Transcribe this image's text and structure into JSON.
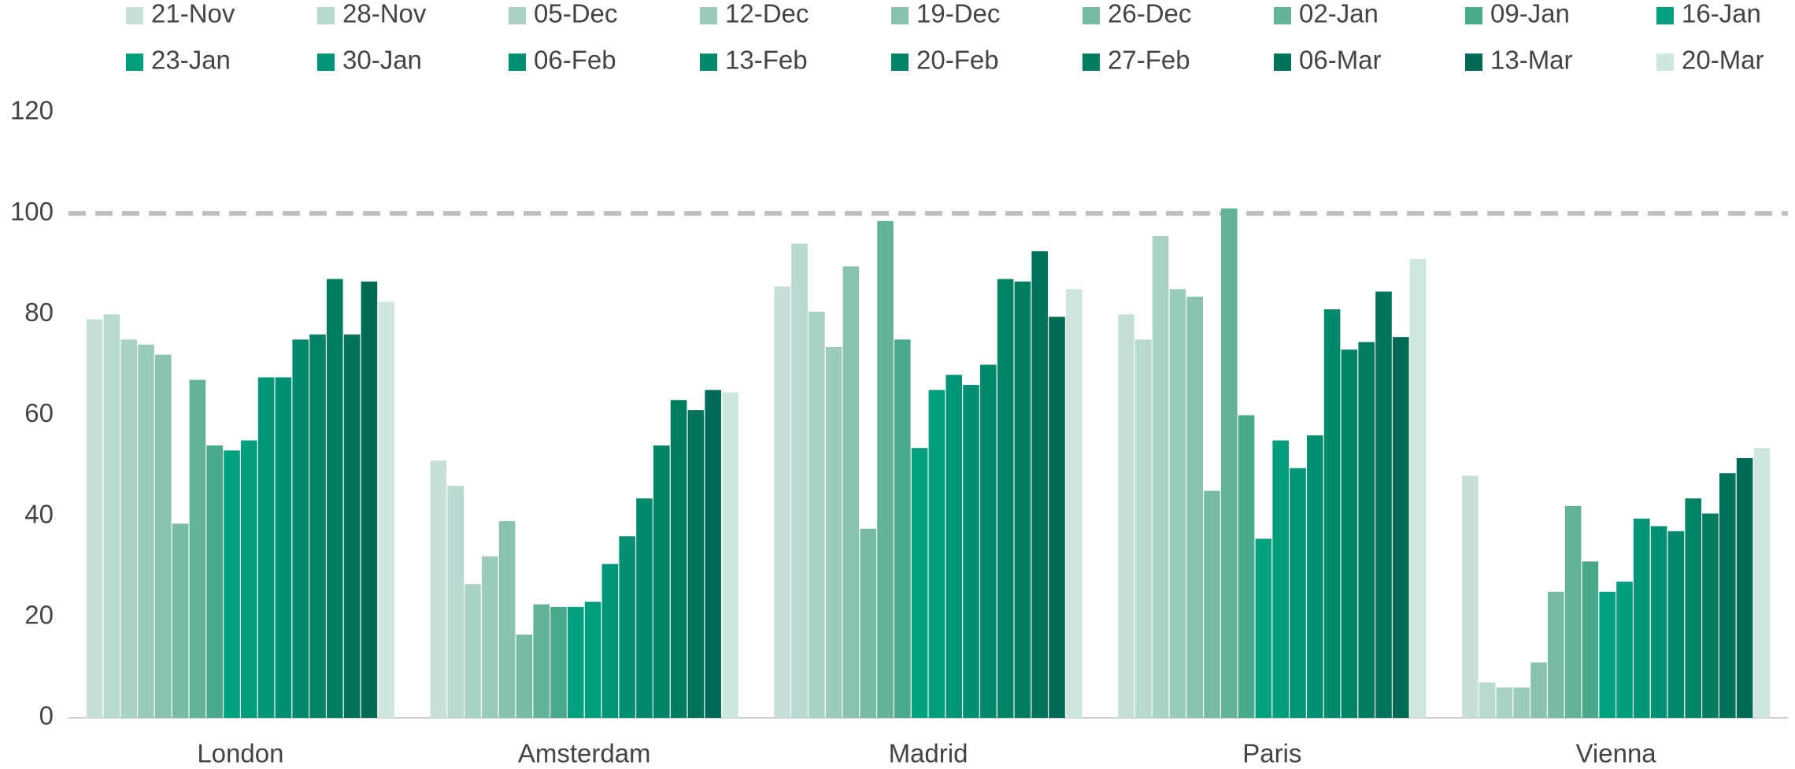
{
  "chart_data": {
    "type": "bar",
    "categories": [
      "London",
      "Amsterdam",
      "Madrid",
      "Paris",
      "Vienna"
    ],
    "series": [
      {
        "name": "21-Nov",
        "color": "#c6e0d8",
        "values": [
          79,
          51,
          85.5,
          80,
          48
        ]
      },
      {
        "name": "28-Nov",
        "color": "#b7d9cf",
        "values": [
          80,
          46,
          94,
          75,
          7
        ]
      },
      {
        "name": "05-Dec",
        "color": "#a9d2c5",
        "values": [
          75,
          26.5,
          80.5,
          95.5,
          6
        ]
      },
      {
        "name": "12-Dec",
        "color": "#9acbbb",
        "values": [
          74,
          32,
          73.5,
          85,
          6
        ]
      },
      {
        "name": "19-Dec",
        "color": "#89c3b0",
        "values": [
          72,
          39,
          89.5,
          83.5,
          11
        ]
      },
      {
        "name": "26-Dec",
        "color": "#78bba5",
        "values": [
          38.5,
          16.5,
          37.5,
          45,
          25
        ]
      },
      {
        "name": "02-Jan",
        "color": "#63b398",
        "values": [
          67,
          22.5,
          98.5,
          101,
          42
        ]
      },
      {
        "name": "09-Jan",
        "color": "#48aa8b",
        "values": [
          54,
          22,
          75,
          60,
          31
        ]
      },
      {
        "name": "16-Jan",
        "color": "#00a27e",
        "values": [
          53,
          22,
          53.5,
          35.5,
          25
        ]
      },
      {
        "name": "23-Jan",
        "color": "#009e7b",
        "values": [
          55,
          23,
          65,
          55,
          27
        ]
      },
      {
        "name": "30-Jan",
        "color": "#009675",
        "values": [
          67.5,
          30.5,
          68,
          49.5,
          39.5
        ]
      },
      {
        "name": "06-Feb",
        "color": "#008f70",
        "values": [
          67.5,
          36,
          66,
          56,
          38
        ]
      },
      {
        "name": "13-Feb",
        "color": "#00896a",
        "values": [
          75,
          43.5,
          70,
          81,
          37
        ]
      },
      {
        "name": "20-Feb",
        "color": "#008264",
        "values": [
          76,
          54,
          87,
          73,
          43.5
        ]
      },
      {
        "name": "27-Feb",
        "color": "#007c5f",
        "values": [
          87,
          63,
          86.5,
          74.5,
          40.5
        ]
      },
      {
        "name": "06-Mar",
        "color": "#00745a",
        "values": [
          76,
          61,
          92.5,
          84.5,
          48.5
        ]
      },
      {
        "name": "13-Mar",
        "color": "#006b54",
        "values": [
          86.5,
          65,
          79.5,
          75.5,
          51.5
        ]
      },
      {
        "name": "20-Mar",
        "color": "#cfe6df",
        "values": [
          82.5,
          64.5,
          85,
          91,
          53.5
        ]
      }
    ],
    "ylim": [
      0,
      120
    ],
    "yticks": [
      0,
      20,
      40,
      60,
      80,
      100,
      120
    ],
    "reference_line": 100,
    "grid": false
  }
}
